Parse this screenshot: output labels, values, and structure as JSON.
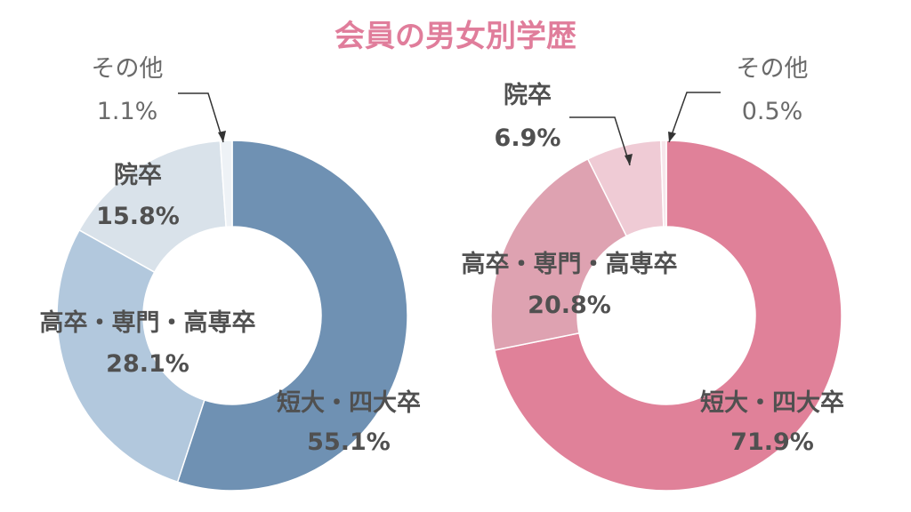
{
  "title": "会員の男女別学歴",
  "chart_data": [
    {
      "type": "pie",
      "donut": true,
      "categories": [
        "短大・四大卒",
        "高卒・専門・高専卒",
        "院卒",
        "その他"
      ],
      "values": [
        55.1,
        28.1,
        15.8,
        1.1
      ],
      "labels": [
        {
          "name": "短大・四大卒",
          "value": "55.1%"
        },
        {
          "name": "高卒・専門・高専卒",
          "value": "28.1%"
        },
        {
          "name": "院卒",
          "value": "15.8%"
        },
        {
          "name": "その他",
          "value": "1.1%"
        }
      ],
      "colors": [
        "#6f91b3",
        "#b2c8dd",
        "#d9e2ea",
        "#eef2f6"
      ]
    },
    {
      "type": "pie",
      "donut": true,
      "categories": [
        "短大・四大卒",
        "高卒・専門・高専卒",
        "院卒",
        "その他"
      ],
      "values": [
        71.9,
        20.8,
        6.9,
        0.5
      ],
      "labels": [
        {
          "name": "短大・四大卒",
          "value": "71.9%"
        },
        {
          "name": "高卒・専門・高専卒",
          "value": "20.8%"
        },
        {
          "name": "院卒",
          "value": "6.9%"
        },
        {
          "name": "その他",
          "value": "0.5%"
        }
      ],
      "colors": [
        "#e08199",
        "#dea2b1",
        "#efcbd5",
        "#f7e6eb"
      ]
    }
  ]
}
